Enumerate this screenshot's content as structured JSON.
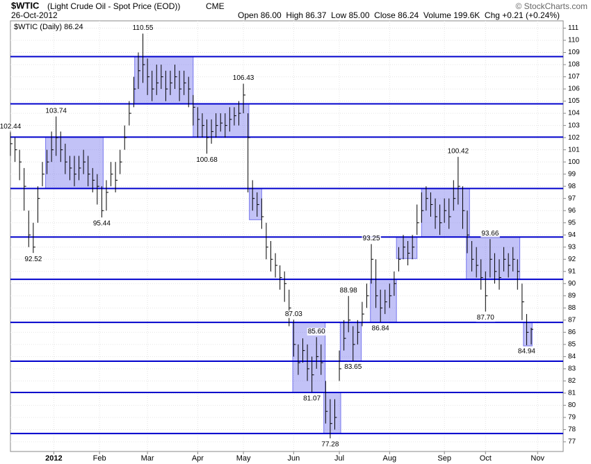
{
  "chart_data": {
    "type": "ohlc",
    "title": "$WTIC",
    "subtitle": "(Light Crude Oil - Spot Price (EOD))",
    "exchange": "CME",
    "date": "26-Oct-2012",
    "stats": "Open 86.00  High 86.37  Low 85.00  Close 86.24  Volume 199.6K  Chg +0.21 (+0.24%)",
    "credit": "© StockCharts.com",
    "legend": "$WTIC (Daily) 86.24",
    "bar_color": "#000000",
    "level_color": "#0000cc",
    "box_color": "#7777ee",
    "grid": true,
    "xlim": [
      0,
      121
    ],
    "ylim": [
      76.2,
      111.6
    ],
    "xticks": [
      {
        "value": 9.5,
        "label": "2012"
      },
      {
        "value": 19.5,
        "label": "Feb"
      },
      {
        "value": 30,
        "label": "Mar"
      },
      {
        "value": 41,
        "label": "Apr"
      },
      {
        "value": 51,
        "label": "May"
      },
      {
        "value": 62,
        "label": "Jun"
      },
      {
        "value": 72,
        "label": "Jul"
      },
      {
        "value": 83,
        "label": "Aug"
      },
      {
        "value": 95,
        "label": "Sep"
      },
      {
        "value": 104,
        "label": "Oct"
      },
      {
        "value": 115.4,
        "label": "Nov"
      }
    ],
    "yticks": [
      77,
      78,
      79,
      80,
      81,
      82,
      83,
      84,
      85,
      86,
      87,
      88,
      89,
      90,
      91,
      92,
      93,
      94,
      95,
      96,
      97,
      98,
      99,
      100,
      101,
      102,
      103,
      104,
      105,
      106,
      107,
      108,
      109,
      110,
      111
    ],
    "high": [
      102.44,
      102,
      101,
      99.5,
      96,
      95,
      98,
      100,
      101,
      102.5,
      103.74,
      102.5,
      101.5,
      100.5,
      100.5,
      100.5,
      101,
      100.5,
      99.5,
      99,
      98,
      98.5,
      100,
      100,
      101,
      103,
      105,
      107,
      109,
      110.55,
      108.5,
      107.5,
      108,
      108,
      107.5,
      107.5,
      108,
      107.5,
      107.5,
      107,
      105.5,
      104.5,
      104,
      103.5,
      103.5,
      104,
      104,
      104,
      104.5,
      104.5,
      105,
      106.43,
      104,
      98.5,
      97.5,
      97,
      95,
      93.5,
      92.5,
      91.5,
      91,
      89.5,
      87.03,
      85,
      85.5,
      85,
      84,
      85.6,
      85,
      82,
      80.5,
      80.5,
      84.5,
      87,
      88.98,
      86.5,
      87,
      88.5,
      90,
      93.25,
      92,
      89.5,
      89.5,
      90,
      91,
      93,
      94,
      93.5,
      94,
      96.5,
      97.5,
      98,
      97.5,
      97,
      96.5,
      97,
      97,
      98.5,
      100.42,
      98,
      96,
      93.5,
      93,
      92,
      91,
      93.66,
      92.5,
      92,
      93,
      92.5,
      93,
      92,
      90,
      87.5,
      86.37
    ],
    "low": [
      100.5,
      100,
      98.5,
      96,
      93,
      92.52,
      95,
      98,
      99,
      100,
      100.5,
      100,
      99,
      98.5,
      98,
      98.5,
      99,
      98,
      97.5,
      96.5,
      95.44,
      96,
      98,
      97.5,
      99,
      101,
      103,
      104.5,
      106,
      106.5,
      105.5,
      105,
      105.5,
      106,
      105,
      105.5,
      106,
      105,
      105.5,
      104.5,
      103,
      102,
      102,
      100.68,
      101.5,
      102,
      102.5,
      102,
      102.5,
      103,
      103,
      104,
      97.5,
      96,
      95.5,
      94.5,
      92,
      91,
      90.5,
      89.5,
      88.5,
      86.5,
      84,
      82.5,
      83.5,
      82,
      81.07,
      83,
      82.5,
      78.5,
      77.28,
      78,
      82,
      84.5,
      86,
      83.65,
      85,
      86.5,
      88,
      90,
      88,
      86.84,
      87.5,
      88,
      89,
      91,
      92,
      91.5,
      92,
      94,
      95,
      96,
      95.5,
      94.5,
      94,
      95,
      94.5,
      96,
      96.5,
      94.5,
      92.5,
      91,
      90.5,
      89.5,
      87.7,
      90.5,
      90,
      89.5,
      91,
      90.5,
      91,
      89.5,
      87,
      84.94,
      85
    ],
    "close": [
      101.5,
      101,
      100,
      98,
      94,
      93,
      97,
      99,
      100,
      101,
      102,
      101,
      100,
      99.5,
      99,
      99.5,
      100,
      99,
      98.5,
      98,
      96,
      97.5,
      99,
      98.5,
      100,
      102,
      104,
      106,
      107.5,
      108,
      107,
      106,
      106.5,
      107,
      106,
      106.5,
      107,
      106,
      106.5,
      106,
      104.5,
      103.5,
      103,
      102,
      102.5,
      103,
      103.2,
      103,
      103.5,
      103.8,
      104,
      105.5,
      102,
      97,
      96.5,
      95.5,
      93,
      92,
      91.5,
      90.5,
      90,
      88,
      85,
      83.5,
      84.5,
      83,
      82.5,
      84,
      83.5,
      79.5,
      78.5,
      79,
      83,
      85.5,
      87,
      85,
      86,
      87.5,
      89,
      92,
      89,
      88,
      88.5,
      89,
      90,
      92,
      93,
      92.5,
      93,
      95,
      96,
      97,
      96.5,
      95.5,
      95,
      96,
      95.5,
      97,
      98,
      96,
      94,
      92,
      91.5,
      90.5,
      89,
      92,
      91,
      90.5,
      92,
      91.5,
      92,
      91,
      88.5,
      86,
      86.24
    ],
    "levels": [
      108.66,
      104.78,
      102.04,
      97.82,
      93.83,
      90.35,
      86.81,
      83.62,
      81.05,
      77.68
    ],
    "boxes": [
      {
        "x": [
          7.7,
          20.3
        ],
        "y": [
          97.82,
          102.04
        ]
      },
      {
        "x": [
          27.2,
          40
        ],
        "y": [
          104.78,
          108.66
        ]
      },
      {
        "x": [
          40,
          52.2
        ],
        "y": [
          102.04,
          104.78
        ]
      },
      {
        "x": [
          52.3,
          55
        ],
        "y": [
          95.25,
          97.82
        ]
      },
      {
        "x": [
          61.8,
          68.9
        ],
        "y": [
          81.05,
          86.81
        ]
      },
      {
        "x": [
          68.6,
          72.3
        ],
        "y": [
          77.68,
          81.05
        ]
      },
      {
        "x": [
          72.2,
          76.8
        ],
        "y": [
          83.62,
          86.81
        ]
      },
      {
        "x": [
          78.8,
          84.5
        ],
        "y": [
          86.81,
          90.35
        ]
      },
      {
        "x": [
          84.5,
          89
        ],
        "y": [
          92.06,
          93.83
        ]
      },
      {
        "x": [
          90,
          100.5
        ],
        "y": [
          93.83,
          97.82
        ]
      },
      {
        "x": [
          99.8,
          111.5
        ],
        "y": [
          90.35,
          93.83
        ]
      },
      {
        "x": [
          112.3,
          114.2
        ],
        "y": [
          84.88,
          86.81
        ]
      }
    ],
    "annotations": [
      {
        "x": 0,
        "value": 102.44,
        "label": "102.44"
      },
      {
        "x": 5,
        "value": 92.52,
        "label": "92.52"
      },
      {
        "x": 10,
        "value": 103.74,
        "label": "103.74"
      },
      {
        "x": 20,
        "value": 95.44,
        "label": "95.44"
      },
      {
        "x": 29,
        "value": 110.55,
        "label": "110.55"
      },
      {
        "x": 43,
        "value": 100.68,
        "label": "100.68"
      },
      {
        "x": 51,
        "value": 106.43,
        "label": "106.43"
      },
      {
        "x": 62,
        "value": 87.03,
        "label": "87.03"
      },
      {
        "x": 67,
        "value": 85.6,
        "label": "85.60"
      },
      {
        "x": 66,
        "value": 81.07,
        "label": "81.07"
      },
      {
        "x": 70,
        "value": 77.28,
        "label": "77.28"
      },
      {
        "x": 74,
        "value": 88.98,
        "label": "88.98"
      },
      {
        "x": 75,
        "value": 83.65,
        "label": "83.65"
      },
      {
        "x": 79,
        "value": 93.25,
        "label": "93.25"
      },
      {
        "x": 81,
        "value": 86.84,
        "label": "86.84"
      },
      {
        "x": 98,
        "value": 100.42,
        "label": "100.42"
      },
      {
        "x": 105,
        "value": 93.66,
        "label": "93.66"
      },
      {
        "x": 104,
        "value": 87.7,
        "label": "87.70"
      },
      {
        "x": 113,
        "value": 84.94,
        "label": "84.94"
      }
    ]
  }
}
